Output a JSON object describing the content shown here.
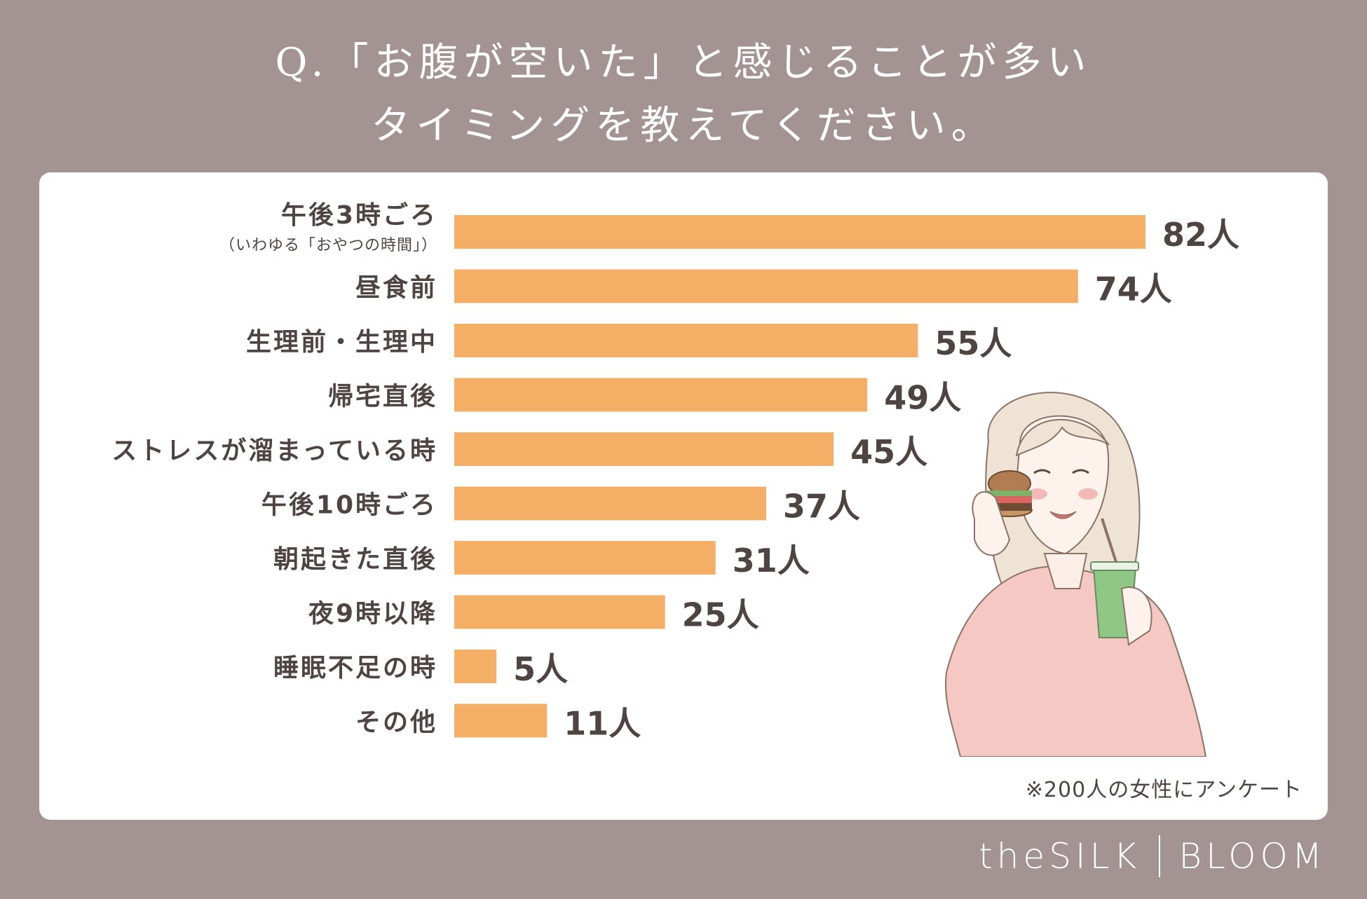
{
  "title": {
    "line1": "Q.「お腹が空いた」と感じることが多い",
    "line2": "タイミングを教えてください。"
  },
  "note": "※200人の女性にアンケート",
  "brand": {
    "left": "theSILK",
    "right": "BLOOM"
  },
  "colors": {
    "background": "#a39393",
    "bar": "#f4ae66",
    "text": "#4e4542"
  },
  "chart_data": {
    "type": "bar",
    "orientation": "horizontal",
    "categories": [
      "午後3時ごろ",
      "昼食前",
      "生理前・生理中",
      "帰宅直後",
      "ストレスが溜まっている時",
      "午後10時ごろ",
      "朝起きた直後",
      "夜9時以降",
      "睡眠不足の時",
      "その他"
    ],
    "category_notes": [
      "（いわゆる「おやつの時間」）",
      "",
      "",
      "",
      "",
      "",
      "",
      "",
      "",
      ""
    ],
    "values": [
      82,
      74,
      55,
      49,
      45,
      37,
      31,
      25,
      5,
      11
    ],
    "value_suffix": "人",
    "xlim": [
      0,
      82
    ],
    "grid": false,
    "legend": "none"
  }
}
